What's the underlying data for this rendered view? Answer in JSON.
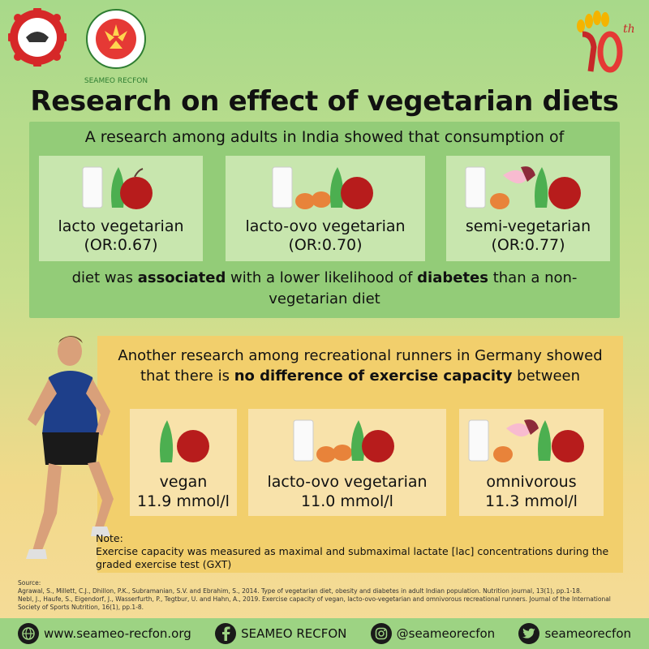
{
  "logos": {
    "seameo": "SEAMEO",
    "recfon": "SEAMEO RECFON",
    "anniversary": "10th"
  },
  "title": "Research on effect of vegetarian diets",
  "india": {
    "intro": "A research among adults in India showed that consumption of",
    "diets": [
      {
        "label": "lacto vegetarian",
        "value": "(OR:0.67)"
      },
      {
        "label": "lacto-ovo vegetarian",
        "value": "(OR:0.70)"
      },
      {
        "label": "semi-vegetarian",
        "value": "(OR:0.77)"
      }
    ],
    "concl_a": "diet was ",
    "concl_b": "associated",
    "concl_c": " with a lower likelihood of ",
    "concl_d": "diabetes",
    "concl_e": " than a non-vegetarian diet"
  },
  "germany": {
    "intro_a": "Another research among recreational runners in Germany showed that there is ",
    "intro_b": "no difference of exercise capacity",
    "intro_c": " between",
    "diets": [
      {
        "label": "vegan",
        "value": "11.9 mmol/l"
      },
      {
        "label": "lacto-ovo vegetarian",
        "value": "11.0 mmol/l"
      },
      {
        "label": "omnivorous",
        "value": "11.3 mmol/l"
      }
    ]
  },
  "note": {
    "heading": "Note:",
    "text": "Exercise capacity was measured as maximal and submaximal lactate [lac] concentrations during the graded exercise test (GXT)"
  },
  "source": {
    "heading": "Source:",
    "line1": "Agrawal, S., Millett, C.J., Dhillon, P.K., Subramanian, S.V. and Ebrahim, S., 2014. Type of vegetarian diet, obesity and diabetes in adult Indian population. Nutrition journal, 13(1), pp.1-18.",
    "line2": "Nebl, J., Haufe, S., Eigendorf, J., Wasserfurth, P., Tegtbur, U. and Hahn, A., 2019. Exercise capacity of vegan, lacto-ovo-vegetarian and omnivorous recreational runners. Journal of the International Society of Sports Nutrition, 16(1), pp.1-8."
  },
  "footer": {
    "website": "www.seameo-recfon.org",
    "facebook": "SEAMEO RECFON",
    "instagram": "@seameorecfon",
    "twitter": "seameorecfon"
  },
  "colors": {
    "panel_green": "#93cc78",
    "panel_yellow": "#f2cf6c",
    "footer": "#9dd383"
  }
}
